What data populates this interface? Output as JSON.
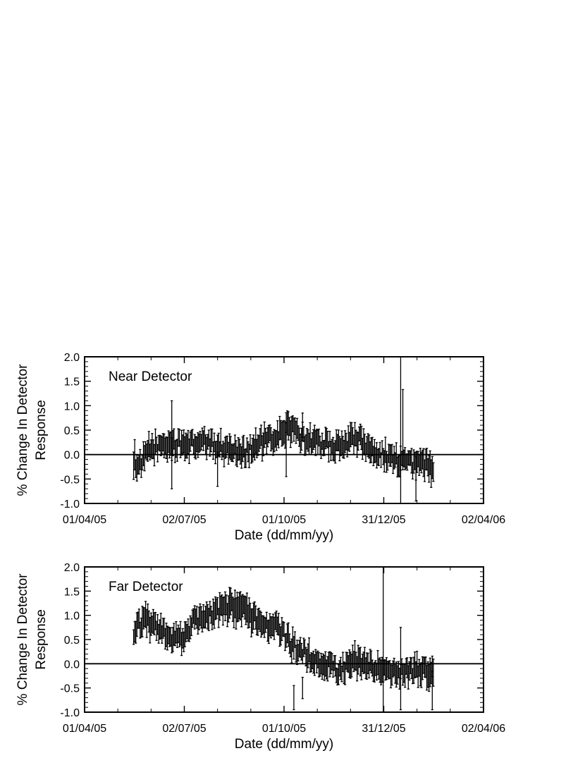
{
  "chart_data": [
    {
      "type": "scatter",
      "title": "Near Detector",
      "xlabel": "Date (dd/mm/yy)",
      "ylabel": [
        "% Change In Detector",
        "Response"
      ],
      "xticks": [
        "01/04/05",
        "02/07/05",
        "01/10/05",
        "31/12/05",
        "02/04/06"
      ],
      "xlim": [
        "2005-04-01",
        "2006-04-02"
      ],
      "yticks": [
        "-1.0",
        "-0.5",
        "0.0",
        "0.5",
        "1.0",
        "1.5",
        "2.0"
      ],
      "ylim": [
        -1.0,
        2.0
      ],
      "reference_line": 0.0,
      "grid": false,
      "errorbars": true,
      "anchors": [
        {
          "date": "2005-05-16",
          "y": -0.1,
          "err": 0.25
        },
        {
          "date": "2005-05-22",
          "y": -0.25,
          "err": 0.2
        },
        {
          "date": "2005-05-30",
          "y": 0.1,
          "err": 0.2
        },
        {
          "date": "2005-06-15",
          "y": 0.2,
          "err": 0.2
        },
        {
          "date": "2005-07-02",
          "y": 0.2,
          "err": 0.2
        },
        {
          "date": "2005-07-20",
          "y": 0.25,
          "err": 0.2
        },
        {
          "date": "2005-08-05",
          "y": 0.15,
          "err": 0.2
        },
        {
          "date": "2005-08-25",
          "y": 0.05,
          "err": 0.2
        },
        {
          "date": "2005-09-10",
          "y": 0.25,
          "err": 0.2
        },
        {
          "date": "2005-09-25",
          "y": 0.35,
          "err": 0.2
        },
        {
          "date": "2005-10-05",
          "y": 0.6,
          "err": 0.25
        },
        {
          "date": "2005-10-15",
          "y": 0.35,
          "err": 0.2
        },
        {
          "date": "2005-11-01",
          "y": 0.25,
          "err": 0.2
        },
        {
          "date": "2005-11-20",
          "y": 0.15,
          "err": 0.2
        },
        {
          "date": "2005-12-05",
          "y": 0.35,
          "err": 0.2
        },
        {
          "date": "2005-12-20",
          "y": 0.1,
          "err": 0.2
        },
        {
          "date": "2006-01-10",
          "y": -0.1,
          "err": 0.2
        },
        {
          "date": "2006-01-30",
          "y": -0.2,
          "err": 0.2
        },
        {
          "date": "2006-02-15",
          "y": -0.25,
          "err": 0.25
        }
      ],
      "outliers": [
        {
          "date": "2005-06-20",
          "y": 0.2,
          "err": 0.9
        },
        {
          "date": "2005-08-01",
          "y": -0.3,
          "err": 0.35
        },
        {
          "date": "2005-10-03",
          "y": 0.1,
          "err": 0.55
        },
        {
          "date": "2005-10-18",
          "y": 0.6,
          "err": 0.25
        },
        {
          "date": "2006-01-16",
          "y": 0.4,
          "err": 1.6
        },
        {
          "date": "2006-01-18",
          "y": 0.55,
          "err": 0.78
        },
        {
          "date": "2006-01-30",
          "y": -0.45,
          "err": 0.5
        }
      ]
    },
    {
      "type": "scatter",
      "title": "Far Detector",
      "xlabel": "Date (dd/mm/yy)",
      "ylabel": [
        "% Change In Detector",
        "Response"
      ],
      "xticks": [
        "01/04/05",
        "02/07/05",
        "01/10/05",
        "31/12/05",
        "02/04/06"
      ],
      "xlim": [
        "2005-04-01",
        "2006-04-02"
      ],
      "yticks": [
        "-1.0",
        "-0.5",
        "0.0",
        "0.5",
        "1.0",
        "1.5",
        "2.0"
      ],
      "ylim": [
        -1.0,
        2.0
      ],
      "reference_line": 0.0,
      "grid": false,
      "errorbars": true,
      "anchors": [
        {
          "date": "2005-05-16",
          "y": 0.6,
          "err": 0.2
        },
        {
          "date": "2005-05-25",
          "y": 0.95,
          "err": 0.25
        },
        {
          "date": "2005-06-05",
          "y": 0.75,
          "err": 0.2
        },
        {
          "date": "2005-06-18",
          "y": 0.55,
          "err": 0.2
        },
        {
          "date": "2005-06-28",
          "y": 0.5,
          "err": 0.2
        },
        {
          "date": "2005-07-10",
          "y": 0.85,
          "err": 0.2
        },
        {
          "date": "2005-07-25",
          "y": 1.0,
          "err": 0.2
        },
        {
          "date": "2005-08-10",
          "y": 1.15,
          "err": 0.25
        },
        {
          "date": "2005-08-25",
          "y": 1.1,
          "err": 0.25
        },
        {
          "date": "2005-09-10",
          "y": 0.85,
          "err": 0.2
        },
        {
          "date": "2005-09-25",
          "y": 0.75,
          "err": 0.2
        },
        {
          "date": "2005-10-08",
          "y": 0.4,
          "err": 0.2
        },
        {
          "date": "2005-10-20",
          "y": 0.2,
          "err": 0.2
        },
        {
          "date": "2005-11-05",
          "y": 0.0,
          "err": 0.2
        },
        {
          "date": "2005-11-20",
          "y": -0.15,
          "err": 0.2
        },
        {
          "date": "2005-12-05",
          "y": 0.05,
          "err": 0.25
        },
        {
          "date": "2005-12-25",
          "y": -0.1,
          "err": 0.2
        },
        {
          "date": "2006-01-10",
          "y": -0.2,
          "err": 0.2
        },
        {
          "date": "2006-01-25",
          "y": -0.15,
          "err": 0.2
        },
        {
          "date": "2006-02-15",
          "y": -0.15,
          "err": 0.25
        }
      ],
      "outliers": [
        {
          "date": "2005-10-10",
          "y": -0.7,
          "err": 0.25
        },
        {
          "date": "2005-10-18",
          "y": -0.5,
          "err": 0.22
        },
        {
          "date": "2005-12-31",
          "y": 0.45,
          "err": 1.55
        },
        {
          "date": "2006-01-16",
          "y": -0.1,
          "err": 0.85
        },
        {
          "date": "2006-02-14",
          "y": -0.55,
          "err": 0.4
        }
      ]
    }
  ]
}
